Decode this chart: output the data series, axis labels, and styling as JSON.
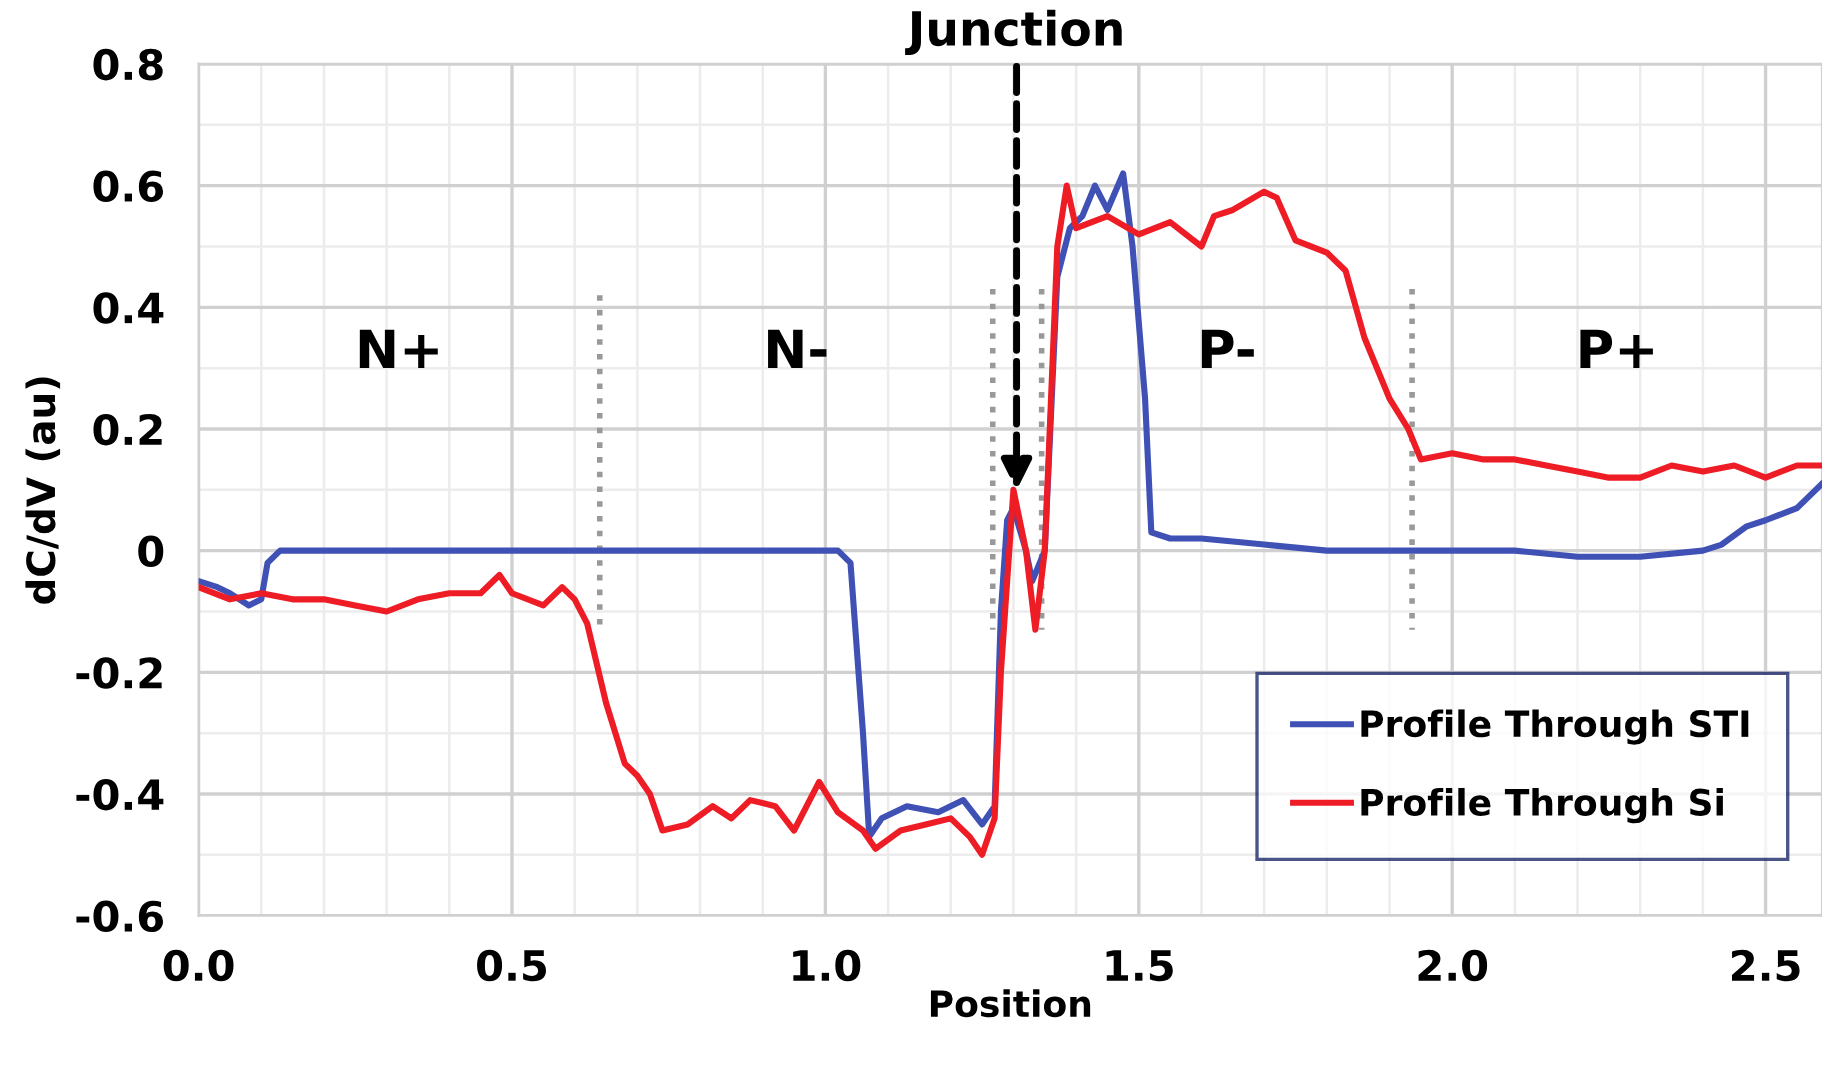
{
  "chart_data": {
    "type": "line",
    "xlabel": "Position",
    "ylabel": "dC/dV (au)",
    "xlim": [
      0,
      2.59
    ],
    "xticks": [
      {
        "value": 0,
        "label": "0.0"
      },
      0.5,
      {
        "value": 1,
        "label": "1.0"
      },
      1.5,
      {
        "value": 2,
        "label": "2.0"
      },
      2.5
    ],
    "ylim": [
      -0.6,
      0.8
    ],
    "yticks": [
      -0.6,
      -0.4,
      -0.2,
      0,
      0.2,
      0.4,
      0.6,
      0.8
    ],
    "grid": true,
    "legend": "bottom right",
    "marker": "none",
    "line_style": "solid",
    "series": [
      {
        "name": "Profile Through STI",
        "color": "#3f51b5",
        "x": [
          0,
          0.03,
          0.05,
          0.08,
          0.1,
          0.11,
          0.13,
          0.2,
          0.3,
          0.4,
          0.5,
          0.6,
          0.7,
          0.8,
          0.9,
          1.0,
          1.02,
          1.04,
          1.06,
          1.07,
          1.09,
          1.13,
          1.18,
          1.22,
          1.25,
          1.27,
          1.28,
          1.29,
          1.3,
          1.32,
          1.33,
          1.35,
          1.37,
          1.39,
          1.41,
          1.43,
          1.45,
          1.475,
          1.49,
          1.51,
          1.52,
          1.55,
          1.6,
          1.7,
          1.8,
          1.9,
          2.0,
          2.1,
          2.2,
          2.3,
          2.4,
          2.43,
          2.47,
          2.5,
          2.55,
          2.59
        ],
        "values": [
          -0.05,
          -0.06,
          -0.07,
          -0.09,
          -0.08,
          -0.02,
          0.0,
          0.0,
          0.0,
          0.0,
          0.0,
          0.0,
          0.0,
          0.0,
          0.0,
          0.0,
          0.0,
          -0.02,
          -0.3,
          -0.47,
          -0.44,
          -0.42,
          -0.43,
          -0.41,
          -0.45,
          -0.42,
          -0.1,
          0.05,
          0.07,
          0.0,
          -0.05,
          0.0,
          0.45,
          0.53,
          0.55,
          0.6,
          0.56,
          0.62,
          0.5,
          0.25,
          0.03,
          0.02,
          0.02,
          0.01,
          0.0,
          0.0,
          0.0,
          0.0,
          -0.01,
          -0.01,
          0.0,
          0.01,
          0.04,
          0.05,
          0.07,
          0.11
        ]
      },
      {
        "name": "Profile Through Si",
        "color": "#ee1c25",
        "x": [
          0,
          0.05,
          0.1,
          0.15,
          0.2,
          0.25,
          0.3,
          0.35,
          0.4,
          0.45,
          0.48,
          0.5,
          0.55,
          0.58,
          0.6,
          0.62,
          0.65,
          0.68,
          0.7,
          0.72,
          0.74,
          0.78,
          0.82,
          0.85,
          0.88,
          0.92,
          0.95,
          0.99,
          1.02,
          1.06,
          1.08,
          1.12,
          1.16,
          1.2,
          1.23,
          1.25,
          1.27,
          1.28,
          1.3,
          1.32,
          1.335,
          1.35,
          1.37,
          1.385,
          1.4,
          1.45,
          1.5,
          1.55,
          1.6,
          1.62,
          1.65,
          1.7,
          1.72,
          1.75,
          1.8,
          1.83,
          1.86,
          1.9,
          1.93,
          1.95,
          2.0,
          2.05,
          2.1,
          2.15,
          2.2,
          2.25,
          2.3,
          2.35,
          2.4,
          2.45,
          2.5,
          2.55,
          2.59
        ],
        "values": [
          -0.06,
          -0.08,
          -0.07,
          -0.08,
          -0.08,
          -0.09,
          -0.1,
          -0.08,
          -0.07,
          -0.07,
          -0.04,
          -0.07,
          -0.09,
          -0.06,
          -0.08,
          -0.12,
          -0.25,
          -0.35,
          -0.37,
          -0.4,
          -0.46,
          -0.45,
          -0.42,
          -0.44,
          -0.41,
          -0.42,
          -0.46,
          -0.38,
          -0.43,
          -0.46,
          -0.49,
          -0.46,
          -0.45,
          -0.44,
          -0.47,
          -0.5,
          -0.44,
          -0.2,
          0.1,
          0.0,
          -0.13,
          0.0,
          0.5,
          0.6,
          0.53,
          0.55,
          0.52,
          0.54,
          0.5,
          0.55,
          0.56,
          0.59,
          0.58,
          0.51,
          0.49,
          0.46,
          0.35,
          0.25,
          0.2,
          0.15,
          0.16,
          0.15,
          0.15,
          0.14,
          0.13,
          0.12,
          0.12,
          0.14,
          0.13,
          0.14,
          0.12,
          0.14,
          0.14
        ]
      },
      {
        "color": "#999999",
        "line_style": "dotted",
        "x": [
          0.64,
          0.64
        ],
        "values": [
          0.42,
          -0.13
        ]
      },
      {
        "color": "#999999",
        "line_style": "dotted",
        "x": [
          1.267,
          1.267
        ],
        "values": [
          0.43,
          -0.13
        ]
      },
      {
        "color": "#999999",
        "line_style": "dotted",
        "x": [
          1.345,
          1.345
        ],
        "values": [
          0.43,
          -0.13
        ]
      },
      {
        "color": "#999999",
        "line_style": "dotted",
        "x": [
          1.936,
          1.936
        ],
        "values": [
          0.43,
          -0.13
        ]
      }
    ],
    "annotations": [
      "N+",
      "N-",
      "P-",
      "P+",
      {
        "text": "Junction",
        "x": 1.305,
        "y": 0.09
      }
    ]
  }
}
